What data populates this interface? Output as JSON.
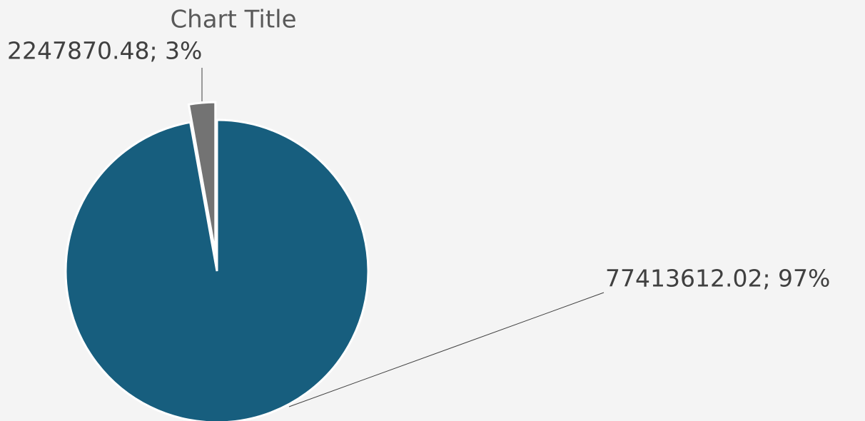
{
  "chart_data": {
    "type": "pie",
    "title": "Chart Title",
    "values": [
      77413612.02,
      2247870.48
    ],
    "value_labels": [
      "77413612.02; 97%",
      "2247870.48; 3%"
    ],
    "colors": [
      "#175e7e",
      "#737373"
    ],
    "exploded": [
      false,
      true
    ]
  }
}
